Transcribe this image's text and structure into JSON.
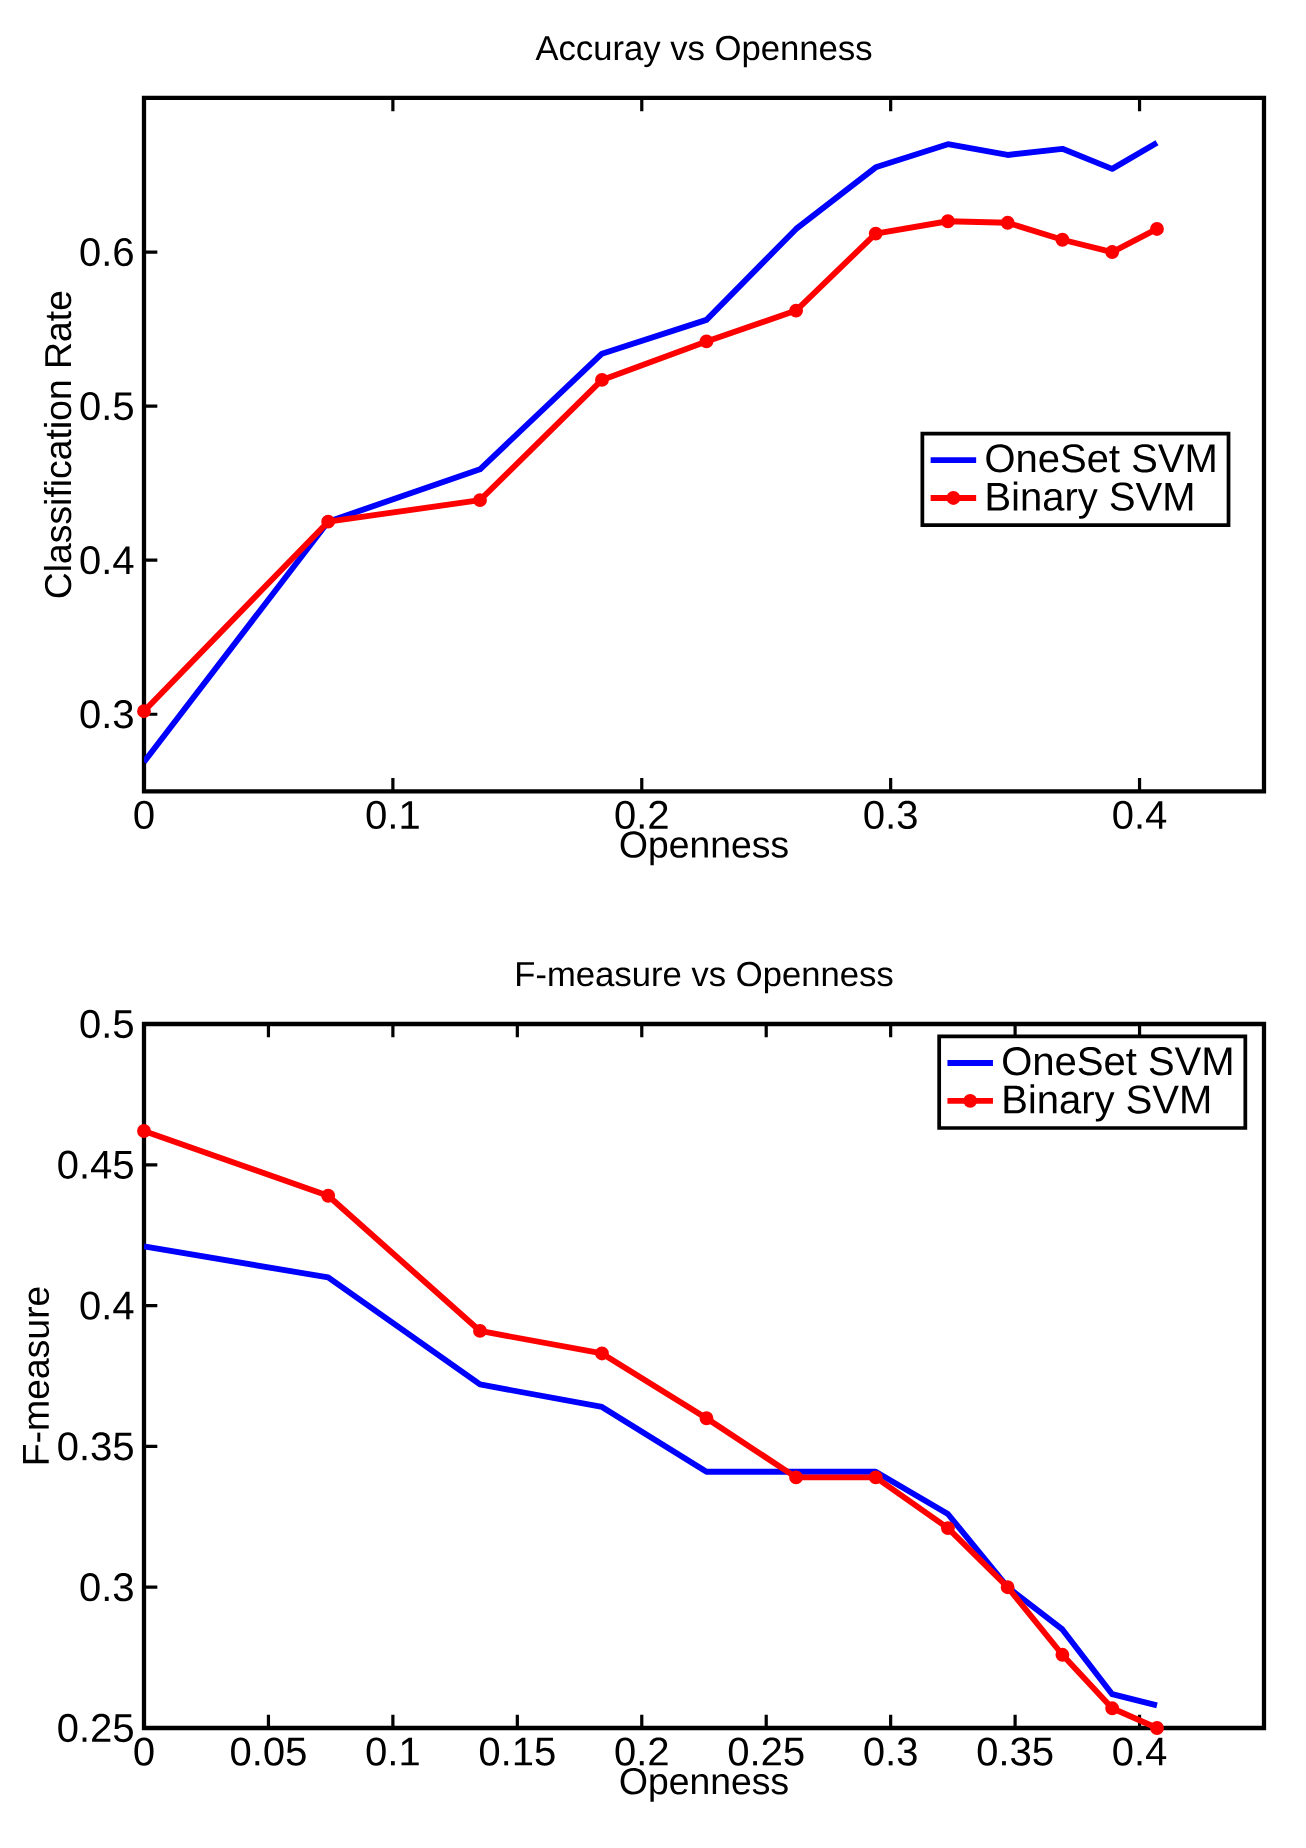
{
  "chart_data": [
    {
      "type": "line",
      "title": "Accuray vs Openness",
      "xlabel": "Openness",
      "ylabel": "Classification Rate",
      "xlim": [
        0,
        0.45
      ],
      "ylim": [
        0.25,
        0.7
      ],
      "xticks": [
        0,
        0.1,
        0.2,
        0.3,
        0.4
      ],
      "yticks": [
        0.3,
        0.4,
        0.5,
        0.6
      ],
      "legend": "right",
      "grid": false,
      "line_style": "solid",
      "x": [
        0,
        0.074,
        0.135,
        0.184,
        0.226,
        0.262,
        0.294,
        0.323,
        0.347,
        0.369,
        0.389,
        0.407
      ],
      "series": [
        {
          "name": "OneSet SVM",
          "color": "#0000ff",
          "marker": "none",
          "values": [
            0.269,
            0.425,
            0.459,
            0.534,
            0.556,
            0.615,
            0.655,
            0.67,
            0.663,
            0.667,
            0.654,
            0.671
          ]
        },
        {
          "name": "Binary SVM",
          "color": "#ff0000",
          "marker": "circle",
          "values": [
            0.302,
            0.425,
            0.439,
            0.517,
            0.542,
            0.562,
            0.612,
            0.62,
            0.619,
            0.608,
            0.6,
            0.615
          ]
        }
      ]
    },
    {
      "type": "line",
      "title": "F-measure vs Openness",
      "xlabel": "Openness",
      "ylabel": "F-measure",
      "xlim": [
        0,
        0.45
      ],
      "ylim": [
        0.25,
        0.5
      ],
      "xticks": [
        0,
        0.05,
        0.1,
        0.15,
        0.2,
        0.25,
        0.3,
        0.35,
        0.4
      ],
      "yticks": [
        0.25,
        0.3,
        0.35,
        0.4,
        0.45,
        0.5
      ],
      "legend": "top right",
      "grid": false,
      "line_style": "solid",
      "x": [
        0,
        0.074,
        0.135,
        0.184,
        0.226,
        0.262,
        0.294,
        0.323,
        0.347,
        0.369,
        0.389,
        0.407
      ],
      "series": [
        {
          "name": "OneSet SVM",
          "color": "#0000ff",
          "marker": "none",
          "values": [
            0.421,
            0.41,
            0.372,
            0.364,
            0.341,
            0.341,
            0.341,
            0.326,
            0.3,
            0.285,
            0.262,
            0.258
          ]
        },
        {
          "name": "Binary SVM",
          "color": "#ff0000",
          "marker": "circle",
          "values": [
            0.462,
            0.439,
            0.391,
            0.383,
            0.36,
            0.339,
            0.339,
            0.321,
            0.3,
            0.276,
            0.257,
            0.25
          ]
        }
      ]
    }
  ]
}
